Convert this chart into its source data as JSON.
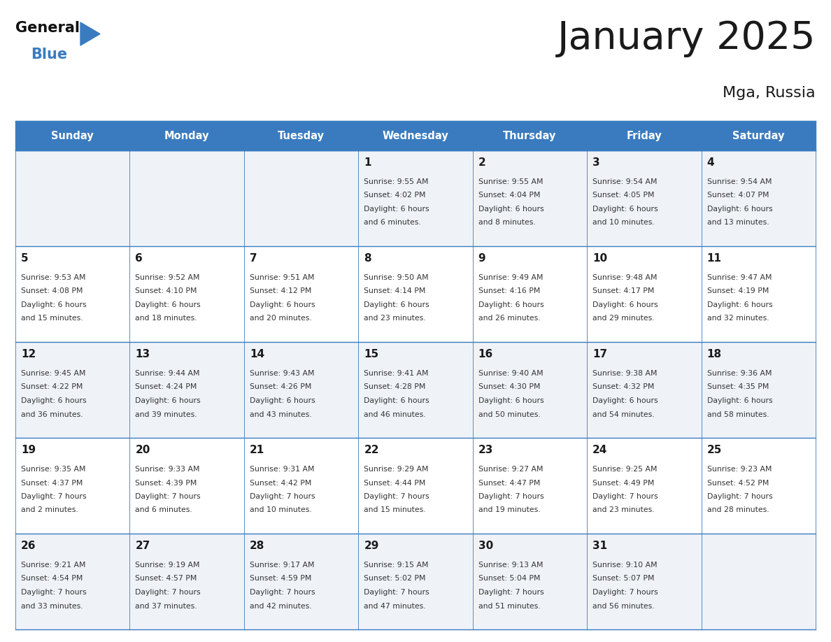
{
  "title": "January 2025",
  "subtitle": "Mga, Russia",
  "header_color": "#3a7bbf",
  "header_text_color": "#ffffff",
  "day_names": [
    "Sunday",
    "Monday",
    "Tuesday",
    "Wednesday",
    "Thursday",
    "Friday",
    "Saturday"
  ],
  "bg_color": "#ffffff",
  "cell_bg_odd": "#eff3f8",
  "cell_bg_even": "#ffffff",
  "grid_color": "#3a7bbf",
  "title_color": "#1a1a1a",
  "subtitle_color": "#1a1a1a",
  "day_num_color": "#1a1a1a",
  "text_color": "#333333",
  "calendar": [
    [
      {
        "day": "",
        "sunrise": "",
        "sunset": "",
        "daylight": ""
      },
      {
        "day": "",
        "sunrise": "",
        "sunset": "",
        "daylight": ""
      },
      {
        "day": "",
        "sunrise": "",
        "sunset": "",
        "daylight": ""
      },
      {
        "day": "1",
        "sunrise": "9:55 AM",
        "sunset": "4:02 PM",
        "daylight": "6 hours\nand 6 minutes."
      },
      {
        "day": "2",
        "sunrise": "9:55 AM",
        "sunset": "4:04 PM",
        "daylight": "6 hours\nand 8 minutes."
      },
      {
        "day": "3",
        "sunrise": "9:54 AM",
        "sunset": "4:05 PM",
        "daylight": "6 hours\nand 10 minutes."
      },
      {
        "day": "4",
        "sunrise": "9:54 AM",
        "sunset": "4:07 PM",
        "daylight": "6 hours\nand 13 minutes."
      }
    ],
    [
      {
        "day": "5",
        "sunrise": "9:53 AM",
        "sunset": "4:08 PM",
        "daylight": "6 hours\nand 15 minutes."
      },
      {
        "day": "6",
        "sunrise": "9:52 AM",
        "sunset": "4:10 PM",
        "daylight": "6 hours\nand 18 minutes."
      },
      {
        "day": "7",
        "sunrise": "9:51 AM",
        "sunset": "4:12 PM",
        "daylight": "6 hours\nand 20 minutes."
      },
      {
        "day": "8",
        "sunrise": "9:50 AM",
        "sunset": "4:14 PM",
        "daylight": "6 hours\nand 23 minutes."
      },
      {
        "day": "9",
        "sunrise": "9:49 AM",
        "sunset": "4:16 PM",
        "daylight": "6 hours\nand 26 minutes."
      },
      {
        "day": "10",
        "sunrise": "9:48 AM",
        "sunset": "4:17 PM",
        "daylight": "6 hours\nand 29 minutes."
      },
      {
        "day": "11",
        "sunrise": "9:47 AM",
        "sunset": "4:19 PM",
        "daylight": "6 hours\nand 32 minutes."
      }
    ],
    [
      {
        "day": "12",
        "sunrise": "9:45 AM",
        "sunset": "4:22 PM",
        "daylight": "6 hours\nand 36 minutes."
      },
      {
        "day": "13",
        "sunrise": "9:44 AM",
        "sunset": "4:24 PM",
        "daylight": "6 hours\nand 39 minutes."
      },
      {
        "day": "14",
        "sunrise": "9:43 AM",
        "sunset": "4:26 PM",
        "daylight": "6 hours\nand 43 minutes."
      },
      {
        "day": "15",
        "sunrise": "9:41 AM",
        "sunset": "4:28 PM",
        "daylight": "6 hours\nand 46 minutes."
      },
      {
        "day": "16",
        "sunrise": "9:40 AM",
        "sunset": "4:30 PM",
        "daylight": "6 hours\nand 50 minutes."
      },
      {
        "day": "17",
        "sunrise": "9:38 AM",
        "sunset": "4:32 PM",
        "daylight": "6 hours\nand 54 minutes."
      },
      {
        "day": "18",
        "sunrise": "9:36 AM",
        "sunset": "4:35 PM",
        "daylight": "6 hours\nand 58 minutes."
      }
    ],
    [
      {
        "day": "19",
        "sunrise": "9:35 AM",
        "sunset": "4:37 PM",
        "daylight": "7 hours\nand 2 minutes."
      },
      {
        "day": "20",
        "sunrise": "9:33 AM",
        "sunset": "4:39 PM",
        "daylight": "7 hours\nand 6 minutes."
      },
      {
        "day": "21",
        "sunrise": "9:31 AM",
        "sunset": "4:42 PM",
        "daylight": "7 hours\nand 10 minutes."
      },
      {
        "day": "22",
        "sunrise": "9:29 AM",
        "sunset": "4:44 PM",
        "daylight": "7 hours\nand 15 minutes."
      },
      {
        "day": "23",
        "sunrise": "9:27 AM",
        "sunset": "4:47 PM",
        "daylight": "7 hours\nand 19 minutes."
      },
      {
        "day": "24",
        "sunrise": "9:25 AM",
        "sunset": "4:49 PM",
        "daylight": "7 hours\nand 23 minutes."
      },
      {
        "day": "25",
        "sunrise": "9:23 AM",
        "sunset": "4:52 PM",
        "daylight": "7 hours\nand 28 minutes."
      }
    ],
    [
      {
        "day": "26",
        "sunrise": "9:21 AM",
        "sunset": "4:54 PM",
        "daylight": "7 hours\nand 33 minutes."
      },
      {
        "day": "27",
        "sunrise": "9:19 AM",
        "sunset": "4:57 PM",
        "daylight": "7 hours\nand 37 minutes."
      },
      {
        "day": "28",
        "sunrise": "9:17 AM",
        "sunset": "4:59 PM",
        "daylight": "7 hours\nand 42 minutes."
      },
      {
        "day": "29",
        "sunrise": "9:15 AM",
        "sunset": "5:02 PM",
        "daylight": "7 hours\nand 47 minutes."
      },
      {
        "day": "30",
        "sunrise": "9:13 AM",
        "sunset": "5:04 PM",
        "daylight": "7 hours\nand 51 minutes."
      },
      {
        "day": "31",
        "sunrise": "9:10 AM",
        "sunset": "5:07 PM",
        "daylight": "7 hours\nand 56 minutes."
      },
      {
        "day": "",
        "sunrise": "",
        "sunset": "",
        "daylight": ""
      }
    ]
  ],
  "logo_general_color": "#111111",
  "logo_blue_color": "#3a7bbf",
  "logo_triangle_color": "#3a7bbf"
}
